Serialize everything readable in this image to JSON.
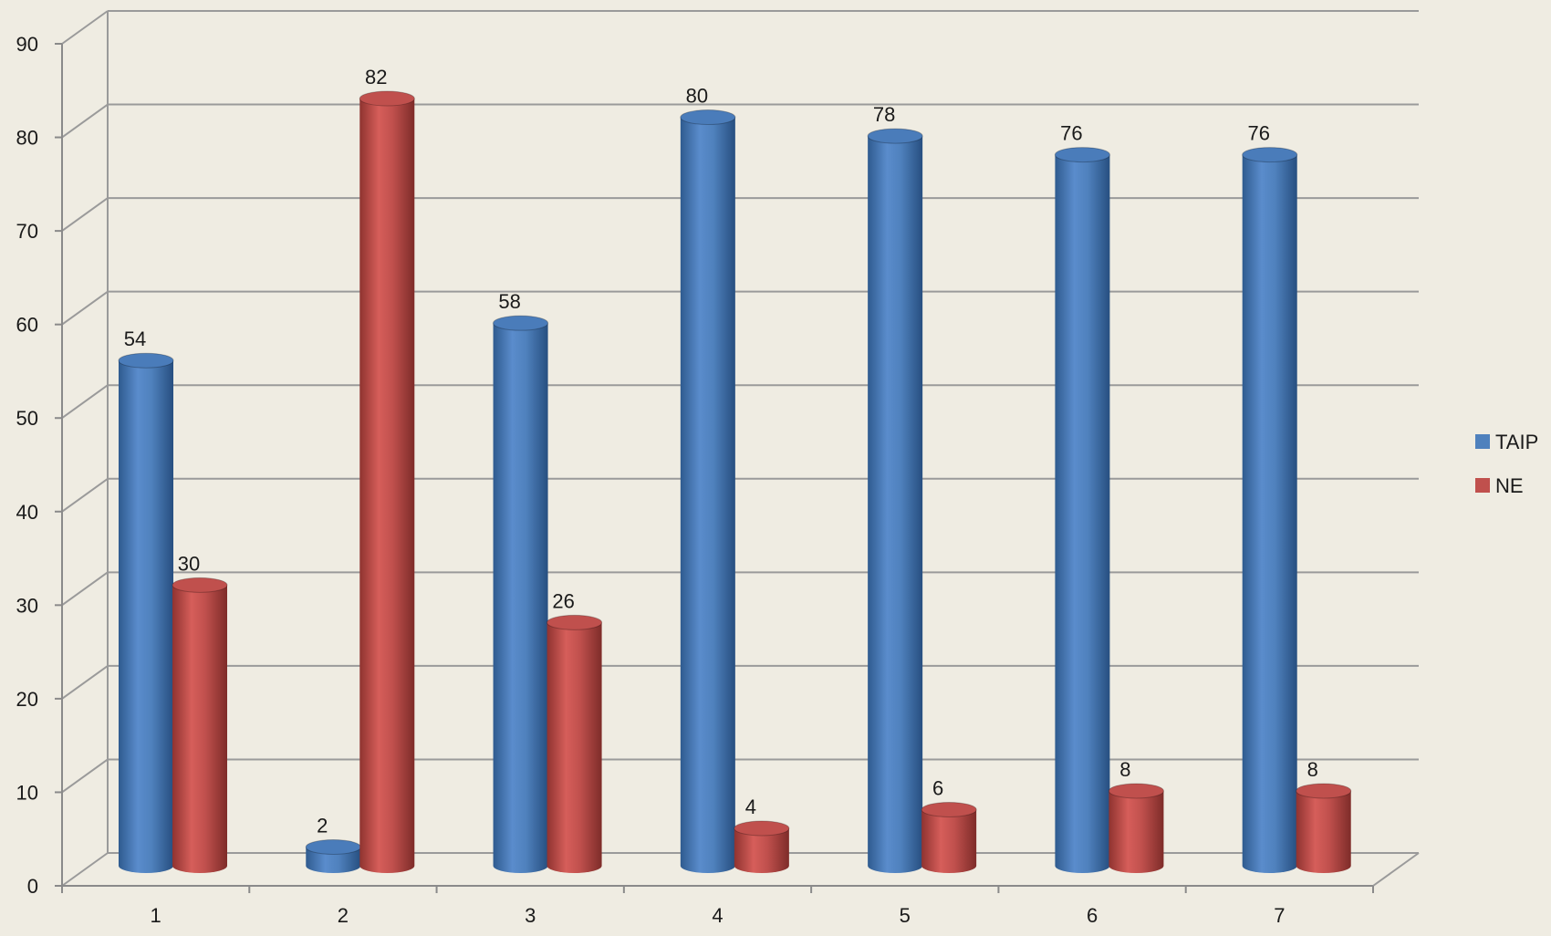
{
  "chart_data": {
    "type": "bar",
    "style": "3d-cylinder",
    "title": "",
    "xlabel": "",
    "ylabel": "",
    "categories": [
      "1",
      "2",
      "3",
      "4",
      "5",
      "6",
      "7"
    ],
    "series": [
      {
        "name": "TAIP",
        "color": "#4f81bd",
        "values": [
          54,
          2,
          58,
          80,
          78,
          76,
          76
        ]
      },
      {
        "name": "NE",
        "color": "#c0504d",
        "values": [
          30,
          82,
          26,
          4,
          6,
          8,
          8
        ]
      }
    ],
    "ylim": [
      0,
      90
    ],
    "yticks": [
      "0",
      "10",
      "20",
      "30",
      "40",
      "50",
      "60",
      "70",
      "80",
      "90"
    ],
    "grid": true,
    "legend_position": "right",
    "data_labels": true
  }
}
